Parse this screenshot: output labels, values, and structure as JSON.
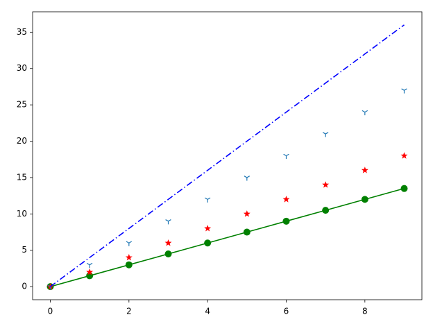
{
  "chart_data": {
    "type": "line",
    "x": [
      0,
      1,
      2,
      3,
      4,
      5,
      6,
      7,
      8,
      9
    ],
    "series": [
      {
        "color": "#008000",
        "marker": "circle",
        "linestyle": "solid",
        "values": [
          0,
          1.5,
          3,
          4.5,
          6,
          7.5,
          9,
          10.5,
          12,
          13.5
        ]
      },
      {
        "color": "#ff0000",
        "marker": "star",
        "linestyle": "none",
        "values": [
          0,
          2,
          4,
          6,
          8,
          10,
          12,
          14,
          16,
          18
        ]
      },
      {
        "color": "#1f77b4",
        "marker": "tri_down",
        "linestyle": "none",
        "values": [
          0,
          3,
          6,
          9,
          12,
          15,
          18,
          21,
          24,
          27
        ]
      },
      {
        "color": "#0000ff",
        "marker": "none",
        "linestyle": "dashdot",
        "values": [
          0,
          4,
          8,
          12,
          16,
          20,
          24,
          28,
          32,
          36
        ]
      }
    ],
    "xlim": [
      -0.45,
      9.45
    ],
    "ylim": [
      -1.8,
      37.8
    ],
    "xticks": [
      0,
      2,
      4,
      6,
      8
    ],
    "yticks": [
      0,
      5,
      10,
      15,
      20,
      25,
      30,
      35
    ],
    "grid": false
  }
}
